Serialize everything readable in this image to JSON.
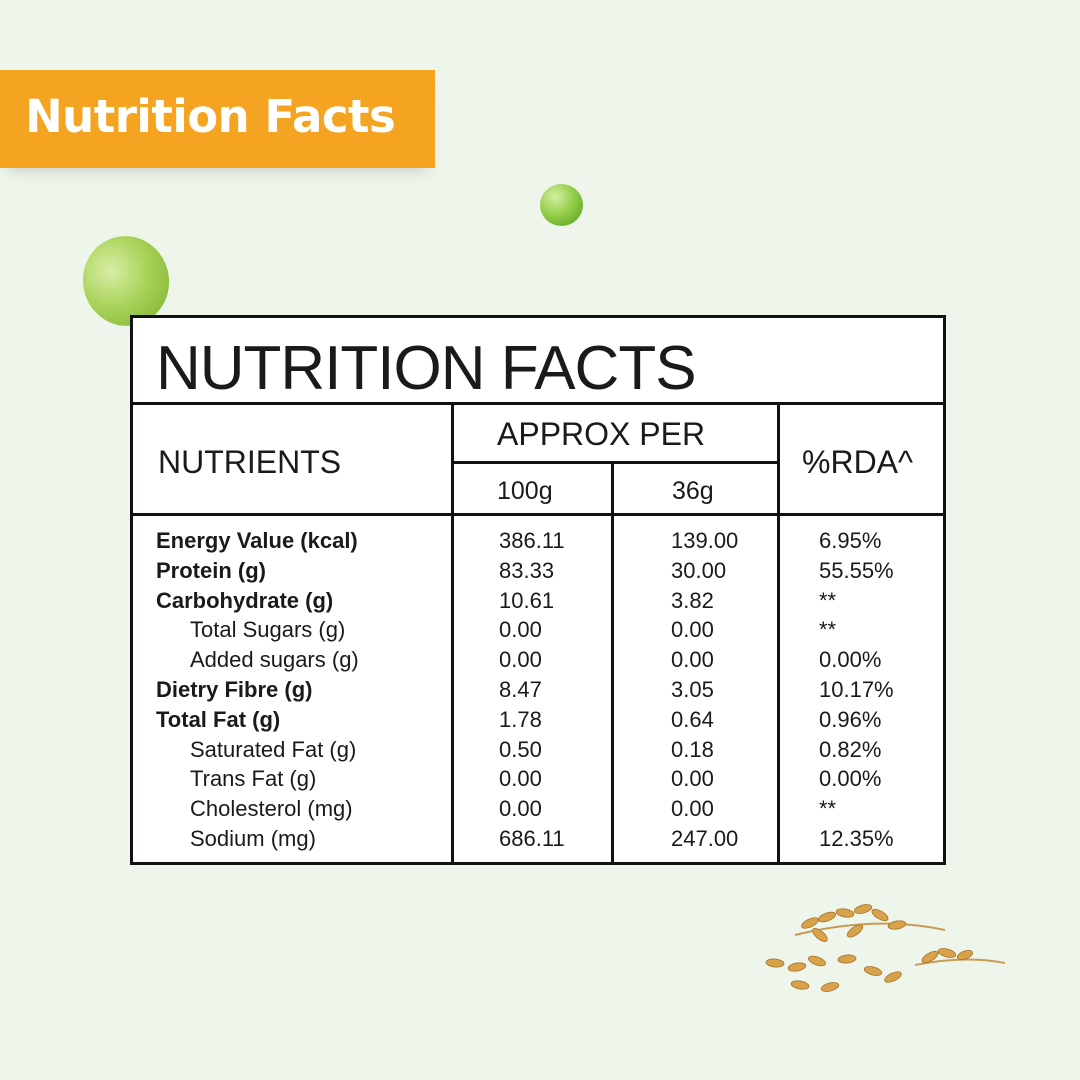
{
  "banner": {
    "title": "Nutrition Facts"
  },
  "panel": {
    "title": "NUTRITION FACTS",
    "headers": {
      "nutrients": "NUTRIENTS",
      "approx_per": "APPROX PER",
      "col_100g": "100g",
      "col_36g": "36g",
      "rda": "%RDA^"
    },
    "rows": [
      {
        "name": "Energy Value (kcal)",
        "v100": "386.11",
        "v36": "139.00",
        "rda": "6.95%",
        "bold": true
      },
      {
        "name": "Protein (g)",
        "v100": "83.33",
        "v36": "30.00",
        "rda": "55.55%",
        "bold": true
      },
      {
        "name": "Carbohydrate (g)",
        "v100": "10.61",
        "v36": "3.82",
        "rda": "**",
        "bold": true
      },
      {
        "name": "Total Sugars (g)",
        "v100": "0.00",
        "v36": "0.00",
        "rda": "**",
        "bold": false
      },
      {
        "name": "Added sugars (g)",
        "v100": "0.00",
        "v36": "0.00",
        "rda": "0.00%",
        "bold": false
      },
      {
        "name": "Dietry Fibre (g)",
        "v100": "8.47",
        "v36": "3.05",
        "rda": "10.17%",
        "bold": true
      },
      {
        "name": "Total Fat (g)",
        "v100": "1.78",
        "v36": "0.64",
        "rda": "0.96%",
        "bold": true
      },
      {
        "name": "Saturated Fat (g)",
        "v100": "0.50",
        "v36": "0.18",
        "rda": "0.82%",
        "bold": false
      },
      {
        "name": "Trans Fat (g)",
        "v100": "0.00",
        "v36": "0.00",
        "rda": "0.00%",
        "bold": false
      },
      {
        "name": "Cholesterol (mg)",
        "v100": "0.00",
        "v36": "0.00",
        "rda": "**",
        "bold": false
      },
      {
        "name": "Sodium (mg)",
        "v100": "686.11",
        "v36": "247.00",
        "rda": "12.35%",
        "bold": false
      }
    ]
  },
  "colors": {
    "background": "#eef6ec",
    "banner": "#f5a421",
    "pea": "#8fcb45"
  },
  "decor": [
    "pea-icon",
    "pea-icon",
    "grain-icon"
  ]
}
